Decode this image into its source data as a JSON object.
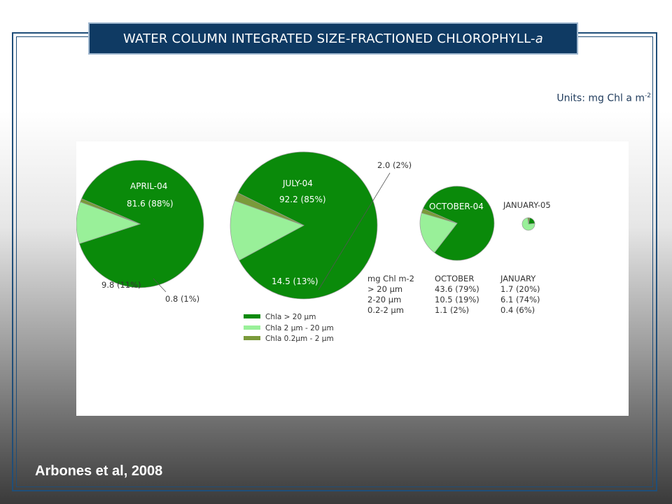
{
  "slide": {
    "title_main": "WATER COLUMN INTEGRATED SIZE-FRACTIONED CHLOROPHYLL-",
    "title_italic": "a",
    "units_main": "Units: mg Chl a m",
    "units_sup": "-2",
    "citation": "Arbones et al, 2008"
  },
  "colors": {
    "large": "#0a8a0a",
    "medium": "#99f099",
    "small": "#7a9a3a",
    "title_bg": "#0f3a63",
    "frame": "#1f4e79"
  },
  "chart_data": {
    "type": "pie",
    "charts": [
      {
        "month": "APRIL-04",
        "values": [
          81.6,
          9.8,
          0.8
        ],
        "labels": [
          "81.6 (88%)",
          "9.8 (11%)",
          "0.8 (1%)"
        ]
      },
      {
        "month": "JULY-04",
        "values": [
          92.2,
          14.5,
          2.0
        ],
        "labels": [
          "92.2 (85%)",
          "14.5  (13%)",
          "2.0 (2%)"
        ]
      },
      {
        "month": "OCTOBER-04",
        "values": [
          43.6,
          10.5,
          1.1
        ],
        "labels": []
      },
      {
        "month": "JANUARY-05",
        "values": [
          1.7,
          6.1,
          0.4
        ],
        "labels": []
      }
    ],
    "legend": [
      "Chla > 20 µm",
      "Chla  2 µm - 20 µm",
      "Chla 0.2µm - 2 µm"
    ],
    "table": {
      "header": [
        "mg Chl m-2",
        "OCTOBER",
        "JANUARY"
      ],
      "rows": [
        [
          "> 20 µm",
          "43.6 (79%)",
          "1.7 (20%)"
        ],
        [
          "2-20 µm",
          "10.5  (19%)",
          "6.1 (74%)"
        ],
        [
          "0.2-2 µm",
          "1.1     (2%)",
          "0.4  (6%)"
        ]
      ]
    }
  }
}
